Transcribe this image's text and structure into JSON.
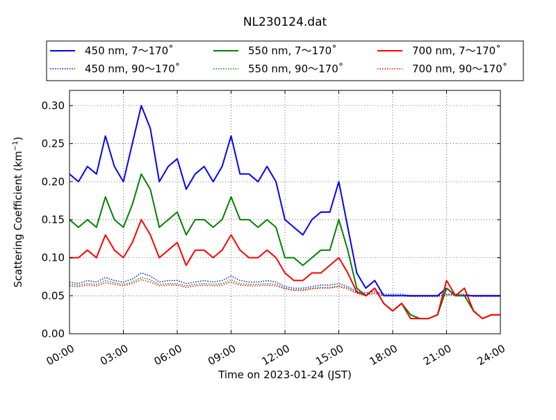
{
  "chart_data": {
    "type": "line",
    "title": "NL230124.dat",
    "xlabel": "Time on 2023-01-24 (JST)",
    "ylabel_main": "Scattering Coefficient (km",
    "ylabel_sup": "−1",
    "ylabel_close": ")",
    "xlim": [
      0,
      24
    ],
    "ylim": [
      0,
      0.32
    ],
    "grid": true,
    "legend_position": "top",
    "x_tick_values": [
      0,
      3,
      6,
      9,
      12,
      15,
      18,
      21,
      24
    ],
    "x_tick_labels": [
      "00:00",
      "03:00",
      "06:00",
      "09:00",
      "12:00",
      "15:00",
      "18:00",
      "21:00",
      "24:00"
    ],
    "y_tick_values": [
      0,
      0.05,
      0.1,
      0.15,
      0.2,
      0.25,
      0.3
    ],
    "y_tick_labels": [
      "0.00",
      "0.05",
      "0.10",
      "0.15",
      "0.20",
      "0.25",
      "0.30"
    ],
    "series": [
      {
        "name": "450 nm, 7～170˚",
        "color": "#0000ff",
        "style": "solid",
        "x": [
          0,
          0.5,
          1,
          1.5,
          2,
          2.5,
          3,
          3.5,
          4,
          4.5,
          5,
          5.5,
          6,
          6.5,
          7,
          7.5,
          8,
          8.5,
          9,
          9.5,
          10,
          10.5,
          11,
          11.5,
          12,
          12.5,
          13,
          13.5,
          14,
          14.5,
          15,
          15.5,
          16,
          16.5,
          17,
          17.5,
          18,
          18.5,
          19,
          19.5,
          20,
          20.5,
          21,
          21.5,
          22,
          22.5,
          23,
          23.5,
          24
        ],
        "y": [
          0.21,
          0.2,
          0.22,
          0.21,
          0.26,
          0.22,
          0.2,
          0.25,
          0.3,
          0.27,
          0.2,
          0.22,
          0.23,
          0.19,
          0.21,
          0.22,
          0.2,
          0.22,
          0.26,
          0.21,
          0.21,
          0.2,
          0.22,
          0.2,
          0.15,
          0.14,
          0.13,
          0.15,
          0.16,
          0.16,
          0.2,
          0.14,
          0.08,
          0.06,
          0.07,
          0.05,
          0.05,
          0.05,
          0.05,
          0.05,
          0.05,
          0.05,
          0.06,
          0.05,
          0.05,
          0.05,
          0.05,
          0.05,
          0.05
        ]
      },
      {
        "name": "450 nm, 90～170˚",
        "color": "#0000ff",
        "style": "dotted",
        "x": [
          0,
          0.5,
          1,
          1.5,
          2,
          2.5,
          3,
          3.5,
          4,
          4.5,
          5,
          5.5,
          6,
          6.5,
          7,
          7.5,
          8,
          8.5,
          9,
          9.5,
          10,
          10.5,
          11,
          11.5,
          12,
          12.5,
          13,
          13.5,
          14,
          14.5,
          15,
          15.5,
          16,
          16.5,
          17,
          17.5,
          18,
          18.5,
          19,
          19.5,
          20,
          20.5,
          21,
          21.5,
          22,
          22.5,
          23,
          23.5,
          24
        ],
        "y": [
          0.068,
          0.066,
          0.07,
          0.068,
          0.074,
          0.07,
          0.068,
          0.072,
          0.08,
          0.076,
          0.068,
          0.07,
          0.07,
          0.066,
          0.068,
          0.07,
          0.068,
          0.07,
          0.076,
          0.07,
          0.068,
          0.068,
          0.07,
          0.068,
          0.062,
          0.06,
          0.06,
          0.062,
          0.064,
          0.064,
          0.066,
          0.062,
          0.056,
          0.054,
          0.056,
          0.052,
          0.052,
          0.052,
          0.05,
          0.05,
          0.05,
          0.05,
          0.052,
          0.052,
          0.052,
          0.05,
          0.05,
          0.05,
          0.05
        ]
      },
      {
        "name": "550 nm, 7～170˚",
        "color": "#008000",
        "style": "solid",
        "x": [
          0,
          0.5,
          1,
          1.5,
          2,
          2.5,
          3,
          3.5,
          4,
          4.5,
          5,
          5.5,
          6,
          6.5,
          7,
          7.5,
          8,
          8.5,
          9,
          9.5,
          10,
          10.5,
          11,
          11.5,
          12,
          12.5,
          13,
          13.5,
          14,
          14.5,
          15,
          15.5,
          16,
          16.5,
          17,
          17.5,
          18,
          18.5,
          19,
          19.5,
          20,
          20.5,
          21,
          21.5,
          22,
          22.5,
          23,
          23.5,
          24
        ],
        "y": [
          0.15,
          0.14,
          0.15,
          0.14,
          0.18,
          0.15,
          0.14,
          0.17,
          0.21,
          0.19,
          0.14,
          0.15,
          0.16,
          0.13,
          0.15,
          0.15,
          0.14,
          0.15,
          0.18,
          0.15,
          0.15,
          0.14,
          0.15,
          0.14,
          0.1,
          0.1,
          0.09,
          0.1,
          0.11,
          0.11,
          0.15,
          0.11,
          0.06,
          0.05,
          0.06,
          0.04,
          0.03,
          0.04,
          0.025,
          0.02,
          0.02,
          0.025,
          0.06,
          0.05,
          0.05,
          0.03,
          0.02,
          0.025,
          0.025
        ]
      },
      {
        "name": "550 nm, 90～170˚",
        "color": "#008000",
        "style": "dotted",
        "x": [
          0,
          0.5,
          1,
          1.5,
          2,
          2.5,
          3,
          3.5,
          4,
          4.5,
          5,
          5.5,
          6,
          6.5,
          7,
          7.5,
          8,
          8.5,
          9,
          9.5,
          10,
          10.5,
          11,
          11.5,
          12,
          12.5,
          13,
          13.5,
          14,
          14.5,
          15,
          15.5,
          16,
          16.5,
          17,
          17.5,
          18,
          18.5,
          19,
          19.5,
          20,
          20.5,
          21,
          21.5,
          22,
          22.5,
          23,
          23.5,
          24
        ],
        "y": [
          0.065,
          0.064,
          0.066,
          0.065,
          0.07,
          0.067,
          0.065,
          0.068,
          0.074,
          0.071,
          0.065,
          0.066,
          0.066,
          0.063,
          0.065,
          0.066,
          0.065,
          0.066,
          0.071,
          0.066,
          0.065,
          0.065,
          0.066,
          0.065,
          0.06,
          0.058,
          0.058,
          0.06,
          0.061,
          0.061,
          0.063,
          0.06,
          0.054,
          0.052,
          0.054,
          0.05,
          0.05,
          0.05,
          0.049,
          0.049,
          0.049,
          0.049,
          0.051,
          0.051,
          0.051,
          0.049,
          0.049,
          0.049,
          0.049
        ]
      },
      {
        "name": "700 nm, 7～170˚",
        "color": "#ff0000",
        "style": "solid",
        "x": [
          0,
          0.5,
          1,
          1.5,
          2,
          2.5,
          3,
          3.5,
          4,
          4.5,
          5,
          5.5,
          6,
          6.5,
          7,
          7.5,
          8,
          8.5,
          9,
          9.5,
          10,
          10.5,
          11,
          11.5,
          12,
          12.5,
          13,
          13.5,
          14,
          14.5,
          15,
          15.5,
          16,
          16.5,
          17,
          17.5,
          18,
          18.5,
          19,
          19.5,
          20,
          20.5,
          21,
          21.5,
          22,
          22.5,
          23,
          23.5,
          24
        ],
        "y": [
          0.1,
          0.1,
          0.11,
          0.1,
          0.13,
          0.11,
          0.1,
          0.12,
          0.15,
          0.13,
          0.1,
          0.11,
          0.12,
          0.09,
          0.11,
          0.11,
          0.1,
          0.11,
          0.13,
          0.11,
          0.1,
          0.1,
          0.11,
          0.1,
          0.08,
          0.07,
          0.07,
          0.08,
          0.08,
          0.09,
          0.1,
          0.08,
          0.055,
          0.05,
          0.06,
          0.04,
          0.03,
          0.04,
          0.02,
          0.02,
          0.02,
          0.025,
          0.07,
          0.05,
          0.06,
          0.03,
          0.02,
          0.025,
          0.025
        ]
      },
      {
        "name": "700 nm, 90～170˚",
        "color": "#ff0000",
        "style": "dotted",
        "x": [
          0,
          0.5,
          1,
          1.5,
          2,
          2.5,
          3,
          3.5,
          4,
          4.5,
          5,
          5.5,
          6,
          6.5,
          7,
          7.5,
          8,
          8.5,
          9,
          9.5,
          10,
          10.5,
          11,
          11.5,
          12,
          12.5,
          13,
          13.5,
          14,
          14.5,
          15,
          15.5,
          16,
          16.5,
          17,
          17.5,
          18,
          18.5,
          19,
          19.5,
          20,
          20.5,
          21,
          21.5,
          22,
          22.5,
          23,
          23.5,
          24
        ],
        "y": [
          0.063,
          0.062,
          0.064,
          0.063,
          0.067,
          0.065,
          0.063,
          0.066,
          0.071,
          0.068,
          0.063,
          0.064,
          0.064,
          0.061,
          0.063,
          0.064,
          0.063,
          0.064,
          0.068,
          0.064,
          0.063,
          0.063,
          0.064,
          0.063,
          0.059,
          0.057,
          0.057,
          0.059,
          0.06,
          0.06,
          0.062,
          0.059,
          0.053,
          0.051,
          0.053,
          0.05,
          0.05,
          0.05,
          0.049,
          0.049,
          0.049,
          0.049,
          0.051,
          0.051,
          0.051,
          0.049,
          0.049,
          0.049,
          0.049
        ]
      }
    ]
  }
}
